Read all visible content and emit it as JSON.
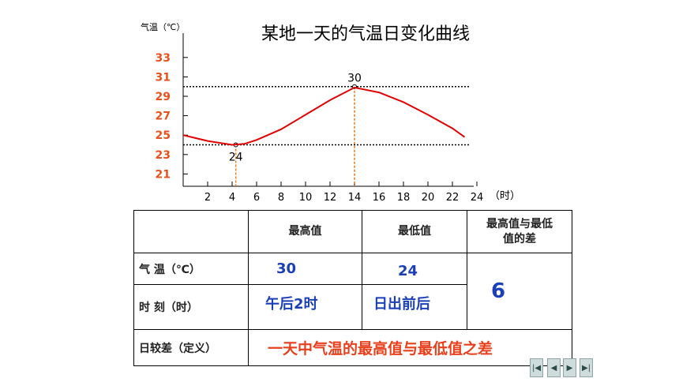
{
  "chart_data": {
    "type": "line",
    "title": "某地一天的气温日变化曲线",
    "ylabel": "气温（℃）",
    "xlabel": "（时）",
    "x_ticks": [
      2,
      4,
      6,
      8,
      10,
      12,
      14,
      16,
      18,
      20,
      22,
      24
    ],
    "y_ticks": [
      21,
      23,
      25,
      27,
      29,
      31,
      33
    ],
    "xlim": [
      0,
      24
    ],
    "ylim": [
      20,
      34
    ],
    "grid": false,
    "series": [
      {
        "x": [
          0,
          2,
          4,
          5,
          6,
          8,
          10,
          12,
          14,
          16,
          18,
          20,
          22,
          23
        ],
        "y": [
          25,
          24.4,
          24,
          24.1,
          24.5,
          25.6,
          27.1,
          28.6,
          29.9,
          29.4,
          28.4,
          27.1,
          25.7,
          24.8
        ]
      }
    ],
    "reference_lines": [
      {
        "y": 30,
        "x": 14,
        "label": "30"
      },
      {
        "y": 24,
        "x": 4.3,
        "label": "24"
      }
    ],
    "colors": {
      "line": "#e00000",
      "ytick": "#e8501c",
      "guide": "#e07b20"
    }
  },
  "table": {
    "headers": [
      "",
      "最高值",
      "最低值",
      "最高值与最低值的差"
    ],
    "header_diff_line1": "最高值与最低",
    "header_diff_line2": "值的差",
    "rows": [
      {
        "label": "气  温（℃）",
        "max": "30",
        "min": "24"
      },
      {
        "label": "时  刻（时）",
        "max": "午后2时",
        "min": "日出前后"
      }
    ],
    "diff_value": "6",
    "range_label": "日较差（定义）",
    "range_definition": "一天中气温的最高值与最低值之差"
  },
  "nav": {
    "first": "first-slide-icon",
    "prev": "previous-slide-icon",
    "next": "next-slide-icon",
    "last": "last-slide-icon"
  }
}
